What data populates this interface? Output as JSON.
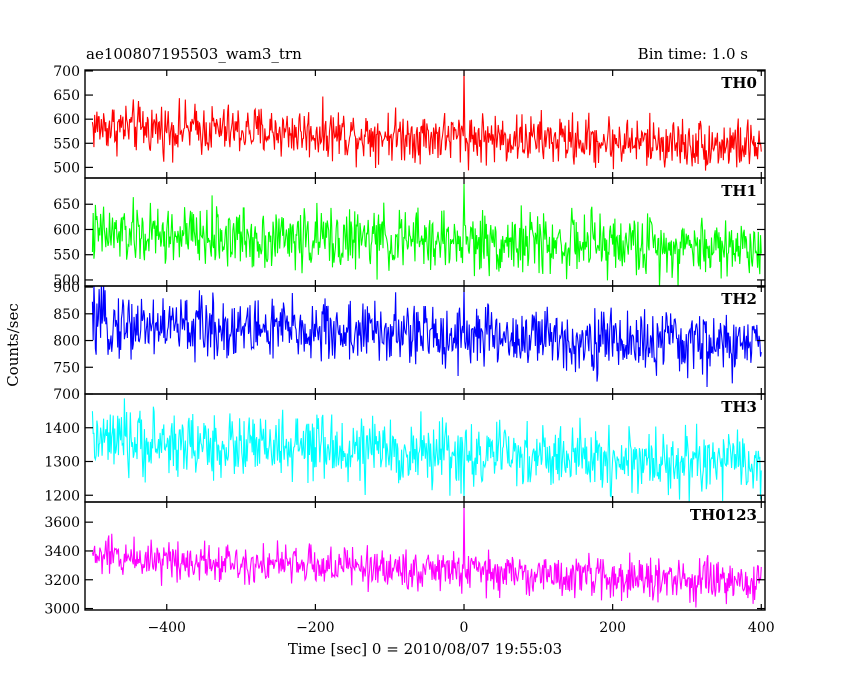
{
  "chart_data": {
    "type": "line",
    "title_left": "ae100807195503_wam3_trn",
    "title_right": "Bin time: 1.0 s",
    "xlabel": "Time [sec] 0 = 2010/08/07 19:55:03",
    "ylabel": "Counts/sec",
    "xlim": [
      -510,
      405
    ],
    "data_x_range": [
      -500,
      400
    ],
    "x_ticks": [
      -400,
      -200,
      0,
      200,
      400
    ],
    "x_tick_labels": [
      "−400",
      "−200",
      "0",
      "200",
      "400"
    ],
    "panels": [
      {
        "name": "TH0",
        "color": "#ff0000",
        "ylim": [
          478,
          702
        ],
        "y_ticks": [
          500,
          550,
          600,
          650,
          700
        ],
        "y_tick_labels": [
          "500",
          "550",
          "600",
          "650",
          "700"
        ],
        "mean_start": 585,
        "mean_end": 545,
        "noise": 26,
        "spike": {
          "x": 0,
          "value": 705
        }
      },
      {
        "name": "TH1",
        "color": "#00ff00",
        "ylim": [
          488,
          702
        ],
        "y_ticks": [
          500,
          550,
          600,
          650
        ],
        "y_tick_labels": [
          "500",
          "550",
          "600",
          "650"
        ],
        "mean_start": 590,
        "mean_end": 565,
        "noise": 30,
        "spike": {
          "x": 0,
          "value": 690
        }
      },
      {
        "name": "TH2",
        "color": "#0000ff",
        "ylim": [
          700,
          902
        ],
        "y_ticks": [
          700,
          750,
          800,
          850,
          900
        ],
        "y_tick_labels": [
          "700",
          "750",
          "800",
          "850",
          "900"
        ],
        "mean_start": 832,
        "mean_end": 790,
        "noise": 30,
        "spike": {
          "x": 0,
          "value": 900
        }
      },
      {
        "name": "TH3",
        "color": "#00ffff",
        "ylim": [
          1180,
          1500
        ],
        "y_ticks": [
          1200,
          1300,
          1400
        ],
        "y_tick_labels": [
          "1200",
          "1300",
          "1400"
        ],
        "mean_start": 1360,
        "mean_end": 1290,
        "noise": 48,
        "spike": {
          "x": 0,
          "value": 1190
        }
      },
      {
        "name": "TH0123",
        "color": "#ff00ff",
        "ylim": [
          2990,
          3740
        ],
        "y_ticks": [
          3000,
          3200,
          3400,
          3600
        ],
        "y_tick_labels": [
          "3000",
          "3200",
          "3400",
          "3600"
        ],
        "mean_start": 3365,
        "mean_end": 3170,
        "noise": 70,
        "spike": {
          "x": 0,
          "value": 3730
        }
      }
    ]
  }
}
